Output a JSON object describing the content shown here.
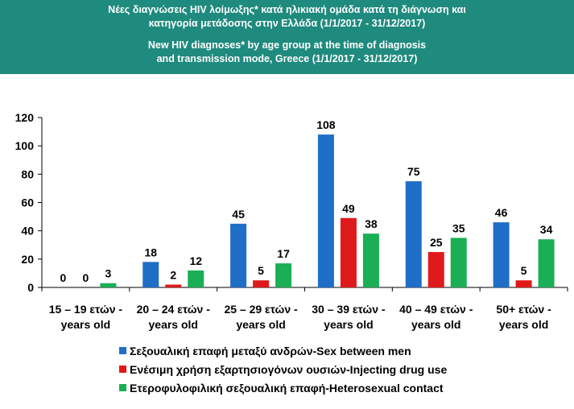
{
  "header": {
    "title_gr": [
      "Νέες διαγνώσεις HIV λοίμωξης* κατά ηλικιακή ομάδα κατά τη διάγνωση και",
      "κατηγορία μετάδοσης στην Ελλάδα (1/1/2017 - 31/12/2017)"
    ],
    "title_en": [
      "New HIV diagnoses* by age group at the time of diagnosis",
      "and transmission mode, Greece (1/1/2017 - 31/12/2017)"
    ]
  },
  "colors": {
    "header_bg": "#1f8a7e",
    "msm": "#1f6fc8",
    "idu": "#e01a1a",
    "hetero": "#1aae55"
  },
  "chart_data": {
    "type": "bar",
    "categories": [
      [
        "15 – 19 ετών -",
        "years old"
      ],
      [
        "20 – 24 ετών -",
        "years old"
      ],
      [
        "25 – 29 ετών -",
        "years old"
      ],
      [
        "30 – 39 ετών -",
        "years old"
      ],
      [
        "40 – 49 ετών -",
        "years old"
      ],
      [
        "50+ ετών -",
        "years old"
      ]
    ],
    "series": [
      {
        "name": "Σεξουαλική επαφή μεταξύ ανδρών-Sex between men",
        "color": "#1f6fc8",
        "values": [
          0,
          18,
          45,
          108,
          75,
          46
        ]
      },
      {
        "name": "Ενέσιμη χρήση εξαρτησιογόνων ουσιών-Injecting drug use",
        "color": "#e01a1a",
        "values": [
          0,
          2,
          5,
          49,
          25,
          5
        ]
      },
      {
        "name": "Ετεροφυλοφιλική σεξουαλική επαφή-Heterosexual contact",
        "color": "#1aae55",
        "values": [
          3,
          12,
          17,
          38,
          35,
          34
        ]
      }
    ],
    "ylim": [
      0,
      120
    ],
    "yticks": [
      0,
      20,
      40,
      60,
      80,
      100,
      120
    ],
    "grid": false,
    "legend_position": "bottom"
  }
}
